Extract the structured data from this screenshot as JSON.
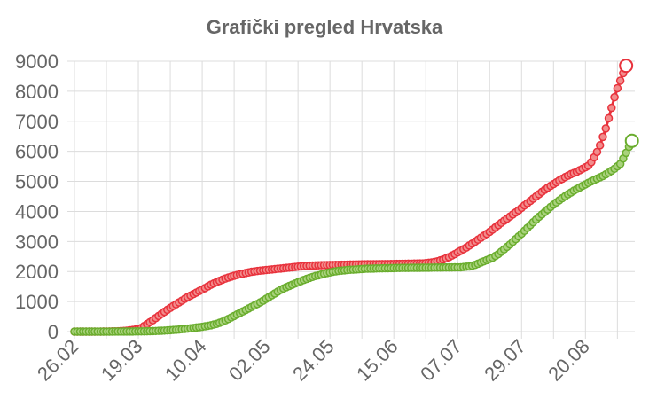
{
  "chart_data": {
    "type": "line",
    "title": "Grafički pregled Hrvatska",
    "x_tick_labels": [
      "26.02",
      "19.03",
      "10.04",
      "02.05",
      "24.05",
      "15.06",
      "07.07",
      "29.07",
      "20.08"
    ],
    "y_tick_labels": [
      "0",
      "1000",
      "2000",
      "3000",
      "4000",
      "5000",
      "6000",
      "7000",
      "8000",
      "9000"
    ],
    "ylim": [
      0,
      9000
    ],
    "x_day_range": [
      0,
      182
    ],
    "grid": true,
    "legend": "none",
    "series": [
      {
        "color": "#e8323c",
        "fill": "#f28c8c",
        "points": [
          [
            0,
            0
          ],
          [
            5,
            0
          ],
          [
            10,
            2
          ],
          [
            15,
            10
          ],
          [
            18,
            30
          ],
          [
            21,
            70
          ],
          [
            23,
            120
          ],
          [
            25,
            250
          ],
          [
            27,
            380
          ],
          [
            29,
            520
          ],
          [
            31,
            660
          ],
          [
            33,
            790
          ],
          [
            35,
            910
          ],
          [
            37,
            1030
          ],
          [
            39,
            1150
          ],
          [
            41,
            1250
          ],
          [
            43,
            1350
          ],
          [
            45,
            1450
          ],
          [
            47,
            1560
          ],
          [
            49,
            1650
          ],
          [
            51,
            1730
          ],
          [
            53,
            1800
          ],
          [
            55,
            1860
          ],
          [
            57,
            1910
          ],
          [
            59,
            1950
          ],
          [
            61,
            1990
          ],
          [
            64,
            2030
          ],
          [
            67,
            2060
          ],
          [
            70,
            2090
          ],
          [
            73,
            2120
          ],
          [
            76,
            2150
          ],
          [
            79,
            2180
          ],
          [
            82,
            2200
          ],
          [
            85,
            2210
          ],
          [
            90,
            2220
          ],
          [
            95,
            2230
          ],
          [
            100,
            2240
          ],
          [
            105,
            2245
          ],
          [
            110,
            2250
          ],
          [
            115,
            2260
          ],
          [
            120,
            2270
          ],
          [
            123,
            2300
          ],
          [
            125,
            2340
          ],
          [
            127,
            2400
          ],
          [
            129,
            2480
          ],
          [
            131,
            2580
          ],
          [
            133,
            2690
          ],
          [
            135,
            2800
          ],
          [
            137,
            2930
          ],
          [
            139,
            3060
          ],
          [
            141,
            3190
          ],
          [
            143,
            3320
          ],
          [
            145,
            3470
          ],
          [
            147,
            3620
          ],
          [
            149,
            3760
          ],
          [
            151,
            3900
          ],
          [
            153,
            4040
          ],
          [
            155,
            4200
          ],
          [
            157,
            4350
          ],
          [
            159,
            4500
          ],
          [
            161,
            4650
          ],
          [
            163,
            4790
          ],
          [
            165,
            4910
          ],
          [
            167,
            5030
          ],
          [
            169,
            5140
          ],
          [
            171,
            5240
          ],
          [
            173,
            5320
          ],
          [
            175,
            5420
          ],
          [
            177,
            5520
          ],
          [
            178,
            5640
          ],
          [
            179,
            5800
          ],
          [
            180,
            5980
          ],
          [
            181,
            6200
          ],
          [
            182,
            6480
          ],
          [
            183,
            6760
          ],
          [
            184,
            7100
          ],
          [
            185,
            7450
          ],
          [
            186,
            7800
          ],
          [
            187,
            8100
          ],
          [
            188,
            8350
          ],
          [
            189,
            8600
          ],
          [
            190,
            8850
          ]
        ]
      },
      {
        "color": "#6aad2e",
        "fill": "#a9d27d",
        "points": [
          [
            0,
            0
          ],
          [
            10,
            0
          ],
          [
            20,
            5
          ],
          [
            25,
            10
          ],
          [
            28,
            20
          ],
          [
            32,
            40
          ],
          [
            36,
            70
          ],
          [
            40,
            110
          ],
          [
            44,
            160
          ],
          [
            47,
            210
          ],
          [
            49,
            260
          ],
          [
            51,
            330
          ],
          [
            53,
            420
          ],
          [
            55,
            520
          ],
          [
            57,
            620
          ],
          [
            59,
            720
          ],
          [
            61,
            820
          ],
          [
            63,
            920
          ],
          [
            65,
            1030
          ],
          [
            67,
            1150
          ],
          [
            69,
            1270
          ],
          [
            71,
            1390
          ],
          [
            73,
            1480
          ],
          [
            75,
            1560
          ],
          [
            77,
            1640
          ],
          [
            79,
            1720
          ],
          [
            81,
            1790
          ],
          [
            83,
            1850
          ],
          [
            85,
            1900
          ],
          [
            87,
            1950
          ],
          [
            89,
            1990
          ],
          [
            91,
            2020
          ],
          [
            94,
            2050
          ],
          [
            97,
            2070
          ],
          [
            100,
            2090
          ],
          [
            103,
            2100
          ],
          [
            108,
            2110
          ],
          [
            113,
            2120
          ],
          [
            118,
            2125
          ],
          [
            123,
            2130
          ],
          [
            128,
            2135
          ],
          [
            133,
            2140
          ],
          [
            136,
            2170
          ],
          [
            138,
            2220
          ],
          [
            140,
            2300
          ],
          [
            142,
            2380
          ],
          [
            144,
            2460
          ],
          [
            146,
            2580
          ],
          [
            148,
            2740
          ],
          [
            150,
            2900
          ],
          [
            152,
            3080
          ],
          [
            154,
            3260
          ],
          [
            156,
            3450
          ],
          [
            158,
            3640
          ],
          [
            160,
            3820
          ],
          [
            162,
            3980
          ],
          [
            164,
            4150
          ],
          [
            166,
            4300
          ],
          [
            168,
            4440
          ],
          [
            170,
            4570
          ],
          [
            172,
            4690
          ],
          [
            174,
            4800
          ],
          [
            176,
            4900
          ],
          [
            178,
            5000
          ],
          [
            180,
            5090
          ],
          [
            182,
            5180
          ],
          [
            184,
            5290
          ],
          [
            186,
            5420
          ],
          [
            188,
            5580
          ],
          [
            189,
            5760
          ],
          [
            190,
            5950
          ],
          [
            191,
            6150
          ],
          [
            192,
            6350
          ]
        ]
      }
    ]
  }
}
